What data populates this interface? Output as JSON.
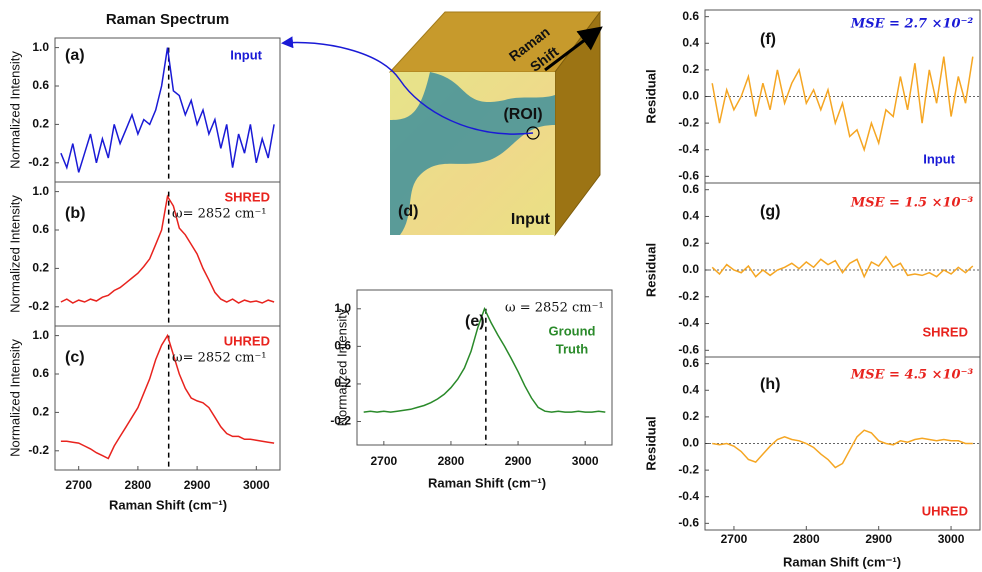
{
  "chart_data": [
    {
      "type": "line",
      "title": "Raman Spectrum",
      "tag": "(a)",
      "label": "Input",
      "label_color": "#1a1ad6",
      "x": [
        2670,
        2680,
        2690,
        2700,
        2710,
        2720,
        2730,
        2740,
        2750,
        2760,
        2770,
        2780,
        2790,
        2800,
        2810,
        2820,
        2830,
        2840,
        2850,
        2860,
        2870,
        2880,
        2890,
        2900,
        2910,
        2920,
        2930,
        2940,
        2950,
        2960,
        2970,
        2980,
        2990,
        3000,
        3010,
        3020,
        3030
      ],
      "values": [
        -0.1,
        -0.25,
        0.0,
        -0.3,
        -0.1,
        0.1,
        -0.2,
        0.05,
        -0.15,
        0.2,
        0.0,
        0.15,
        0.3,
        0.1,
        0.25,
        0.2,
        0.35,
        0.6,
        1.0,
        0.55,
        0.5,
        0.3,
        0.45,
        0.2,
        0.35,
        0.1,
        0.25,
        -0.05,
        0.2,
        -0.25,
        0.1,
        -0.1,
        0.2,
        -0.2,
        0.05,
        -0.15,
        0.2
      ],
      "color": "#1a1ad6",
      "xlim": [
        2660,
        3040
      ],
      "ylim": [
        -0.4,
        1.1
      ],
      "yticks": [
        {
          "value": 1,
          "label": "1.0"
        },
        0.6,
        0.2,
        -0.2
      ],
      "ylabel": "Normalized Intensity",
      "vline": 2852
    },
    {
      "type": "line",
      "tag": "(b)",
      "label": "SHRED",
      "label_color": "#e8231e",
      "annotation": "ω= 2852 cm⁻¹",
      "x": [
        2670,
        2680,
        2690,
        2700,
        2710,
        2720,
        2730,
        2740,
        2750,
        2760,
        2770,
        2780,
        2790,
        2800,
        2810,
        2820,
        2830,
        2840,
        2850,
        2860,
        2870,
        2880,
        2890,
        2900,
        2910,
        2920,
        2930,
        2940,
        2950,
        2960,
        2970,
        2980,
        2990,
        3000,
        3010,
        3020,
        3030
      ],
      "values": [
        -0.15,
        -0.12,
        -0.16,
        -0.13,
        -0.15,
        -0.12,
        -0.14,
        -0.1,
        -0.08,
        -0.03,
        0.0,
        0.05,
        0.1,
        0.15,
        0.22,
        0.3,
        0.45,
        0.6,
        0.95,
        0.85,
        0.62,
        0.55,
        0.45,
        0.35,
        0.2,
        0.08,
        -0.05,
        -0.12,
        -0.15,
        -0.12,
        -0.16,
        -0.13,
        -0.15,
        -0.14,
        -0.16,
        -0.13,
        -0.15
      ],
      "color": "#e8231e",
      "xlim": [
        2660,
        3040
      ],
      "ylim": [
        -0.4,
        1.1
      ],
      "yticks": [
        {
          "value": 1,
          "label": "1.0"
        },
        0.6,
        0.2,
        -0.2
      ],
      "ylabel": "Normalized Intensity",
      "vline": 2852
    },
    {
      "type": "line",
      "tag": "(c)",
      "label": "UHRED",
      "label_color": "#e8231e",
      "annotation": "ω= 2852 cm⁻¹",
      "x": [
        2670,
        2680,
        2690,
        2700,
        2710,
        2720,
        2730,
        2740,
        2750,
        2760,
        2770,
        2780,
        2790,
        2800,
        2810,
        2820,
        2830,
        2840,
        2850,
        2860,
        2870,
        2880,
        2890,
        2900,
        2910,
        2920,
        2930,
        2940,
        2950,
        2960,
        2970,
        2980,
        2990,
        3000,
        3010,
        3020,
        3030
      ],
      "values": [
        -0.1,
        -0.1,
        -0.11,
        -0.12,
        -0.15,
        -0.18,
        -0.22,
        -0.25,
        -0.28,
        -0.15,
        -0.05,
        0.05,
        0.15,
        0.25,
        0.4,
        0.55,
        0.75,
        0.9,
        1.0,
        0.8,
        0.6,
        0.45,
        0.35,
        0.32,
        0.3,
        0.25,
        0.15,
        0.05,
        -0.02,
        -0.05,
        -0.05,
        -0.08,
        -0.08,
        -0.09,
        -0.1,
        -0.11,
        -0.12
      ],
      "color": "#e8231e",
      "xlim": [
        2660,
        3040
      ],
      "ylim": [
        -0.4,
        1.1
      ],
      "yticks": [
        {
          "value": 1,
          "label": "1.0"
        },
        0.6,
        0.2,
        -0.2
      ],
      "xticks": [
        2700,
        2800,
        2900,
        3000
      ],
      "ylabel": "Normalized Intensity",
      "xlabel": "Raman Shift (cm⁻¹)",
      "vline": 2852
    },
    {
      "type": "line",
      "tag": "(e)",
      "label": [
        "Ground",
        "Truth"
      ],
      "label_color": "#2a8a2a",
      "annotation": "ω = 2852 cm⁻¹",
      "x": [
        2670,
        2680,
        2690,
        2700,
        2710,
        2720,
        2730,
        2740,
        2750,
        2760,
        2770,
        2780,
        2790,
        2800,
        2810,
        2820,
        2830,
        2840,
        2850,
        2860,
        2870,
        2880,
        2890,
        2900,
        2910,
        2920,
        2930,
        2940,
        2950,
        2960,
        2970,
        2980,
        2990,
        3000,
        3010,
        3020,
        3030
      ],
      "values": [
        -0.1,
        -0.09,
        -0.1,
        -0.09,
        -0.1,
        -0.09,
        -0.08,
        -0.07,
        -0.05,
        -0.03,
        0.0,
        0.04,
        0.09,
        0.16,
        0.25,
        0.37,
        0.55,
        0.8,
        1.0,
        0.85,
        0.72,
        0.6,
        0.47,
        0.33,
        0.18,
        0.05,
        -0.05,
        -0.09,
        -0.1,
        -0.09,
        -0.1,
        -0.1,
        -0.09,
        -0.1,
        -0.1,
        -0.09,
        -0.1
      ],
      "color": "#2a8a2a",
      "xlim": [
        2660,
        3040
      ],
      "ylim": [
        -0.45,
        1.2
      ],
      "yticks": [
        {
          "value": 1,
          "label": "1.0"
        },
        0.6,
        0.2,
        -0.2
      ],
      "xticks": [
        2700,
        2800,
        2900,
        3000
      ],
      "ylabel": "Normalized Intensity",
      "xlabel": "Raman Shift (cm⁻¹)",
      "vline": 2852
    },
    {
      "type": "line",
      "tag": "(f)",
      "label": "Input",
      "label_color": "#1a1ad6",
      "annotation": "MSE = 2.7 ×10⁻²",
      "annotation_color": "#1a1ad6",
      "x": [
        2670,
        2680,
        2690,
        2700,
        2710,
        2720,
        2730,
        2740,
        2750,
        2760,
        2770,
        2780,
        2790,
        2800,
        2810,
        2820,
        2830,
        2840,
        2850,
        2860,
        2870,
        2880,
        2890,
        2900,
        2910,
        2920,
        2930,
        2940,
        2950,
        2960,
        2970,
        2980,
        2990,
        3000,
        3010,
        3020,
        3030
      ],
      "values": [
        0.1,
        -0.2,
        0.05,
        -0.1,
        0.0,
        0.15,
        -0.15,
        0.1,
        -0.1,
        0.2,
        -0.05,
        0.1,
        0.2,
        -0.05,
        0.05,
        -0.1,
        0.05,
        -0.2,
        -0.05,
        -0.3,
        -0.25,
        -0.4,
        -0.2,
        -0.35,
        -0.1,
        -0.15,
        0.15,
        -0.1,
        0.25,
        -0.2,
        0.2,
        -0.05,
        0.3,
        -0.15,
        0.15,
        -0.05,
        0.3
      ],
      "color": "#f5a623",
      "xlim": [
        2660,
        3040
      ],
      "ylim": [
        -0.65,
        0.65
      ],
      "yticks": [
        0.6,
        0.4,
        0.2,
        {
          "value": 0,
          "label": "0.0"
        },
        -0.2,
        -0.4,
        -0.6
      ],
      "ylabel": "Residual",
      "zero_line": true
    },
    {
      "type": "line",
      "tag": "(g)",
      "label": "SHRED",
      "label_color": "#e8231e",
      "annotation": "MSE = 1.5 ×10⁻³",
      "annotation_color": "#e8231e",
      "x": [
        2670,
        2680,
        2690,
        2700,
        2710,
        2720,
        2730,
        2740,
        2750,
        2760,
        2770,
        2780,
        2790,
        2800,
        2810,
        2820,
        2830,
        2840,
        2850,
        2860,
        2870,
        2880,
        2890,
        2900,
        2910,
        2920,
        2930,
        2940,
        2950,
        2960,
        2970,
        2980,
        2990,
        3000,
        3010,
        3020,
        3030
      ],
      "values": [
        0.02,
        -0.03,
        0.04,
        0.0,
        -0.02,
        0.03,
        -0.05,
        0.0,
        -0.04,
        0.0,
        0.02,
        0.05,
        0.01,
        0.06,
        0.02,
        0.08,
        0.04,
        0.07,
        -0.02,
        0.05,
        0.08,
        -0.05,
        0.06,
        0.03,
        0.1,
        0.02,
        0.05,
        -0.04,
        -0.03,
        -0.04,
        -0.02,
        -0.05,
        0.0,
        -0.03,
        0.02,
        -0.02,
        0.03
      ],
      "color": "#f5a623",
      "xlim": [
        2660,
        3040
      ],
      "ylim": [
        -0.65,
        0.65
      ],
      "yticks": [
        0.6,
        0.4,
        0.2,
        {
          "value": 0,
          "label": "0.0"
        },
        -0.2,
        -0.4,
        -0.6
      ],
      "ylabel": "Residual",
      "zero_line": true
    },
    {
      "type": "line",
      "tag": "(h)",
      "label": "UHRED",
      "label_color": "#e8231e",
      "annotation": "MSE = 4.5 ×10⁻³",
      "annotation_color": "#e8231e",
      "x": [
        2670,
        2680,
        2690,
        2700,
        2710,
        2720,
        2730,
        2740,
        2750,
        2760,
        2770,
        2780,
        2790,
        2800,
        2810,
        2820,
        2830,
        2840,
        2850,
        2860,
        2870,
        2880,
        2890,
        2900,
        2910,
        2920,
        2930,
        2940,
        2950,
        2960,
        2970,
        2980,
        2990,
        3000,
        3010,
        3020,
        3030
      ],
      "values": [
        0.0,
        -0.01,
        0.0,
        -0.02,
        -0.06,
        -0.12,
        -0.14,
        -0.08,
        -0.02,
        0.03,
        0.05,
        0.03,
        0.02,
        0.0,
        -0.03,
        -0.08,
        -0.12,
        -0.18,
        -0.15,
        -0.05,
        0.05,
        0.1,
        0.08,
        0.02,
        0.0,
        -0.01,
        0.02,
        0.01,
        0.03,
        0.04,
        0.03,
        0.02,
        0.03,
        0.02,
        0.02,
        0.0,
        0.0
      ],
      "color": "#f5a623",
      "xlim": [
        2660,
        3040
      ],
      "ylim": [
        -0.65,
        0.65
      ],
      "yticks": [
        0.6,
        0.4,
        0.2,
        {
          "value": 0,
          "label": "0.0"
        },
        -0.2,
        -0.4,
        -0.6
      ],
      "xticks": [
        2700,
        2800,
        2900,
        3000
      ],
      "ylabel": "Residual",
      "xlabel": "Raman Shift (cm⁻¹)",
      "zero_line": true
    }
  ],
  "panel_d": {
    "tag": "(d)",
    "axis_label": [
      "Raman",
      "Shift"
    ],
    "roi": "(ROI)",
    "label": "Input"
  }
}
